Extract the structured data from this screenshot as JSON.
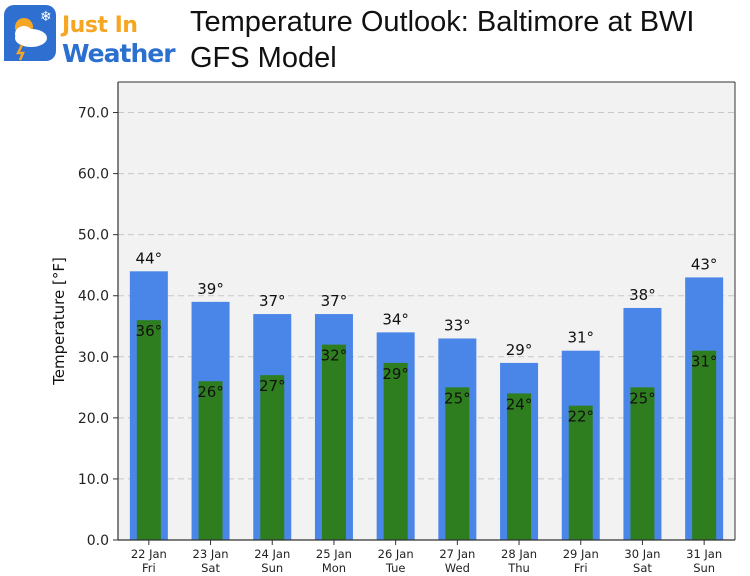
{
  "header": {
    "logo_line1": "Just In",
    "logo_line2": "Weather",
    "title_line1": "Temperature Outlook: Baltimore at BWI",
    "title_line2": "GFS Model"
  },
  "colors": {
    "high_bar": "#4a86e8",
    "low_bar": "#2e7d1f",
    "plot_bg": "#f2f2f2",
    "logo_orange": "#f5a623",
    "logo_blue": "#2b6fcf"
  },
  "chart_data": {
    "type": "bar",
    "ylabel": "Temperature [°F]",
    "ylim": [
      0,
      75
    ],
    "yticks": [
      "0.0",
      "10.0",
      "20.0",
      "30.0",
      "40.0",
      "50.0",
      "60.0",
      "70.0"
    ],
    "grid": true,
    "categories": [
      [
        "22 Jan",
        "Fri"
      ],
      [
        "23 Jan",
        "Sat"
      ],
      [
        "24 Jan",
        "Sun"
      ],
      [
        "25 Jan",
        "Mon"
      ],
      [
        "26 Jan",
        "Tue"
      ],
      [
        "27 Jan",
        "Wed"
      ],
      [
        "28 Jan",
        "Thu"
      ],
      [
        "29 Jan",
        "Fri"
      ],
      [
        "30 Jan",
        "Sat"
      ],
      [
        "31 Jan",
        "Sun"
      ]
    ],
    "series": [
      {
        "values": [
          44,
          39,
          37,
          37,
          34,
          33,
          29,
          31,
          38,
          43
        ],
        "labels": [
          "44°",
          "39°",
          "37°",
          "37°",
          "34°",
          "33°",
          "29°",
          "31°",
          "38°",
          "43°"
        ]
      },
      {
        "values": [
          36,
          26,
          27,
          32,
          29,
          25,
          24,
          22,
          25,
          31
        ],
        "labels": [
          "36°",
          "26°",
          "27°",
          "32°",
          "29°",
          "25°",
          "24°",
          "22°",
          "25°",
          "31°"
        ]
      }
    ]
  }
}
